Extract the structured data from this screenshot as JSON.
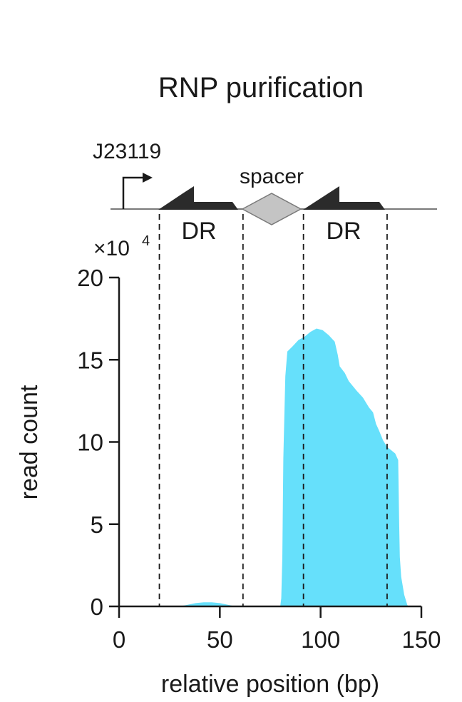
{
  "chart_data": {
    "type": "area",
    "title": "RNP purification",
    "xlabel": "relative position (bp)",
    "ylabel": "read count",
    "y_multiplier": "×10",
    "y_multiplier_exp": "4",
    "xlim": [
      0,
      150
    ],
    "ylim": [
      0,
      20
    ],
    "x_ticks": [
      0,
      50,
      100,
      150
    ],
    "y_ticks": [
      0,
      5,
      10,
      15,
      20
    ],
    "fill_color": "#66e0fb",
    "dashed_lines_x": [
      20,
      61.5,
      91.5,
      133
    ],
    "series": [
      {
        "points": [
          [
            30,
            0
          ],
          [
            34,
            0.1
          ],
          [
            38,
            0.2
          ],
          [
            42,
            0.25
          ],
          [
            46,
            0.25
          ],
          [
            50,
            0.2
          ],
          [
            54,
            0.1
          ],
          [
            58,
            0
          ],
          [
            80,
            0
          ],
          [
            80.5,
            0.5
          ],
          [
            81,
            3
          ],
          [
            81.5,
            9
          ],
          [
            82.5,
            14
          ],
          [
            83.5,
            15.5
          ],
          [
            86,
            15.8
          ],
          [
            89,
            16.2
          ],
          [
            92,
            16.4
          ],
          [
            95,
            16.7
          ],
          [
            98,
            16.9
          ],
          [
            101,
            16.8
          ],
          [
            104,
            16.5
          ],
          [
            107,
            16.1
          ],
          [
            108.5,
            15.3
          ],
          [
            109.5,
            14.6
          ],
          [
            112,
            14.2
          ],
          [
            114,
            13.7
          ],
          [
            118,
            13.1
          ],
          [
            121,
            12.7
          ],
          [
            124,
            12.1
          ],
          [
            126,
            11.8
          ],
          [
            127.5,
            11.1
          ],
          [
            129,
            10.7
          ],
          [
            131,
            10.1
          ],
          [
            133,
            9.7
          ],
          [
            135,
            9.5
          ],
          [
            137,
            9.3
          ],
          [
            138.5,
            8.9
          ],
          [
            139,
            5
          ],
          [
            139.3,
            3
          ],
          [
            140,
            1.8
          ],
          [
            141.5,
            0.7
          ],
          [
            143,
            0.1
          ],
          [
            143.5,
            0
          ]
        ]
      }
    ]
  },
  "construct": {
    "promoter_label": "J23119",
    "spacer_label": "spacer",
    "repeat_labels": [
      "DR",
      "DR"
    ],
    "repeat_color": "#2b2b2b",
    "spacer_color": "#c4c4c4"
  }
}
